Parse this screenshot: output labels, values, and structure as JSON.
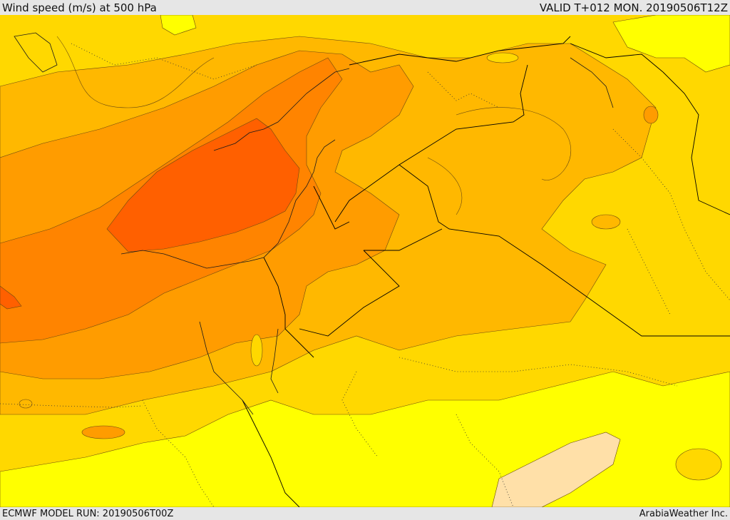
{
  "header": {
    "title": "Wind speed (m/s) at 500 hPa",
    "valid": "VALID T+012 MON. 20190506T12Z"
  },
  "footer": {
    "model_run": "ECMWF MODEL RUN: 20190506T00Z",
    "credit": "ArabiaWeather Inc."
  },
  "map": {
    "field": "wind speed at 500 hPa",
    "colors": {
      "lowest": "#ffe0a8",
      "low": "#ffff00",
      "mid_low": "#ffd800",
      "mid": "#ffb800",
      "mid_high": "#ff9c00",
      "high": "#ff8400",
      "highest": "#ff6000",
      "contour": "#6a4a10",
      "border": "#000000"
    }
  }
}
